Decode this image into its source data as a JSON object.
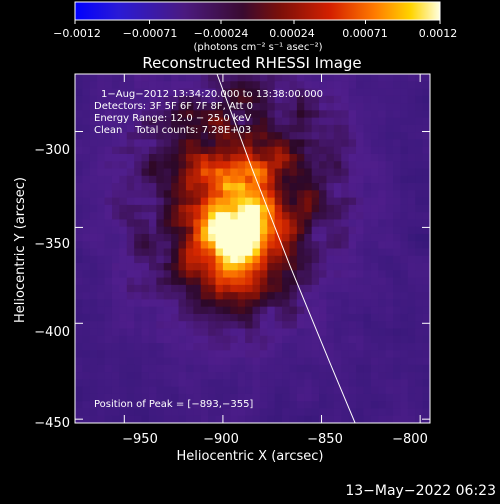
{
  "chart_data": {
    "type": "heatmap",
    "title": "Reconstructed RHESSI Image",
    "xlabel": "Heliocentric X (arcsec)",
    "ylabel": "Heliocentric Y (arcsec)",
    "xlim": [
      -975,
      -795
    ],
    "ylim": [
      -452,
      -270
    ],
    "xticks": [
      -950,
      -900,
      -850,
      -800
    ],
    "yticks": [
      -300,
      -350,
      -400,
      -450
    ],
    "colorbar": {
      "min": -0.0012,
      "max": 0.0012,
      "ticks": [
        -0.0012,
        -0.00071,
        -0.00024,
        0.00024,
        0.00071,
        0.0012
      ],
      "tick_labels": [
        "−0.0012",
        "−0.00071",
        "−0.00024",
        "0.00024",
        "0.00071",
        "0.0012"
      ],
      "label": "(photons cm⁻² s⁻¹ asec⁻²)"
    },
    "annotations": {
      "time_range": "1−Aug−2012 13:34:20.000 to 13:38:00.000",
      "detectors": "Detectors: 3F 5F 6F 7F 8F, Att 0",
      "energy_range": "Energy Range: 12.0 − 25.0 keV",
      "clean_counts": "Clean    Total counts: 7.28E+03",
      "peak_position": "Position of Peak = [−893,−355]"
    },
    "peak": [
      -893,
      -355
    ],
    "limb_curve": [
      [
        -903,
        -270
      ],
      [
        -885,
        -320
      ],
      [
        -866,
        -370
      ],
      [
        -846,
        -420
      ],
      [
        -833,
        -452
      ]
    ],
    "footer_date": "13−May−2022 06:23"
  },
  "x_tick_labels": [
    "−950",
    "−900",
    "−850",
    "−800"
  ],
  "y_tick_labels": [
    "−300",
    "−350",
    "−400",
    "−450"
  ]
}
